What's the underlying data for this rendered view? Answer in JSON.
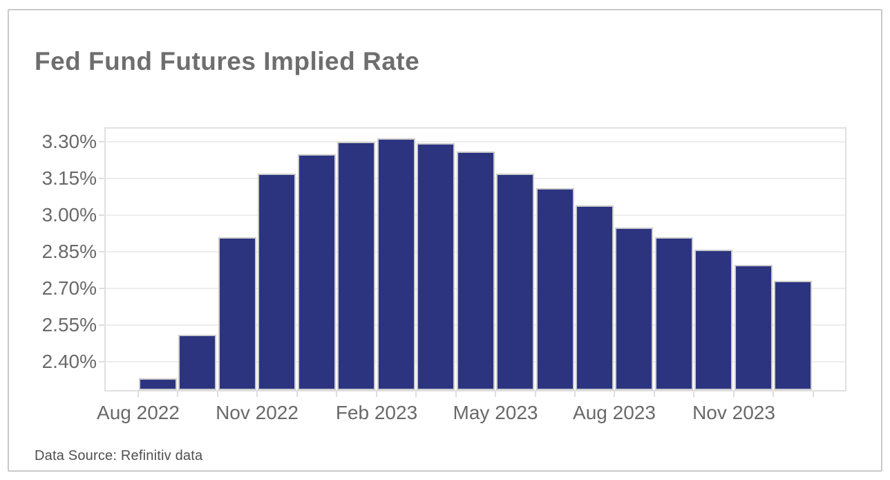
{
  "card": {
    "title": "Fed Fund Futures Implied Rate",
    "source_note": "Data Source: Refinitiv data"
  },
  "chart_data": {
    "type": "bar",
    "title": "Fed Fund Futures Implied Rate",
    "categories": [
      "Aug 2022",
      "Sep 2022",
      "Oct 2022",
      "Nov 2022",
      "Dec 2022",
      "Jan 2023",
      "Feb 2023",
      "Mar 2023",
      "Apr 2023",
      "May 2023",
      "Jun 2023",
      "Jul 2023",
      "Aug 2023",
      "Sep 2023",
      "Oct 2023",
      "Nov 2023",
      "Dec 2023"
    ],
    "values": [
      2.33,
      2.51,
      2.91,
      3.17,
      3.25,
      3.3,
      3.315,
      3.295,
      3.26,
      3.17,
      3.11,
      3.04,
      2.95,
      2.91,
      2.86,
      2.795,
      2.73
    ],
    "unit": "%",
    "xlabel": "",
    "ylabel": "",
    "ylim": [
      2.283,
      3.355
    ],
    "y_tick_values": [
      3.3,
      3.15,
      3.0,
      2.85,
      2.7,
      2.55,
      2.4
    ],
    "y_tick_labels": [
      "3.30%",
      "3.15%",
      "3.00%",
      "2.85%",
      "2.70%",
      "2.55%",
      "2.40%"
    ],
    "x_tick_labels": [
      "Aug 2022",
      "Nov 2022",
      "Feb 2023",
      "May 2023",
      "Aug 2023",
      "Nov 2023"
    ],
    "x_tick_month_indices": [
      0,
      3,
      6,
      9,
      12,
      15
    ],
    "grid": true,
    "legend": false
  },
  "colors": {
    "bar_fill": "#2c3480",
    "bar_edge": "#cccccc",
    "gridline": "#ededed",
    "plot_border": "#e0e0e0",
    "card_border": "#c9c9c9",
    "title_text": "#6e6e6e",
    "tick_text": "#696969",
    "source_text": "#4f4f4f"
  }
}
